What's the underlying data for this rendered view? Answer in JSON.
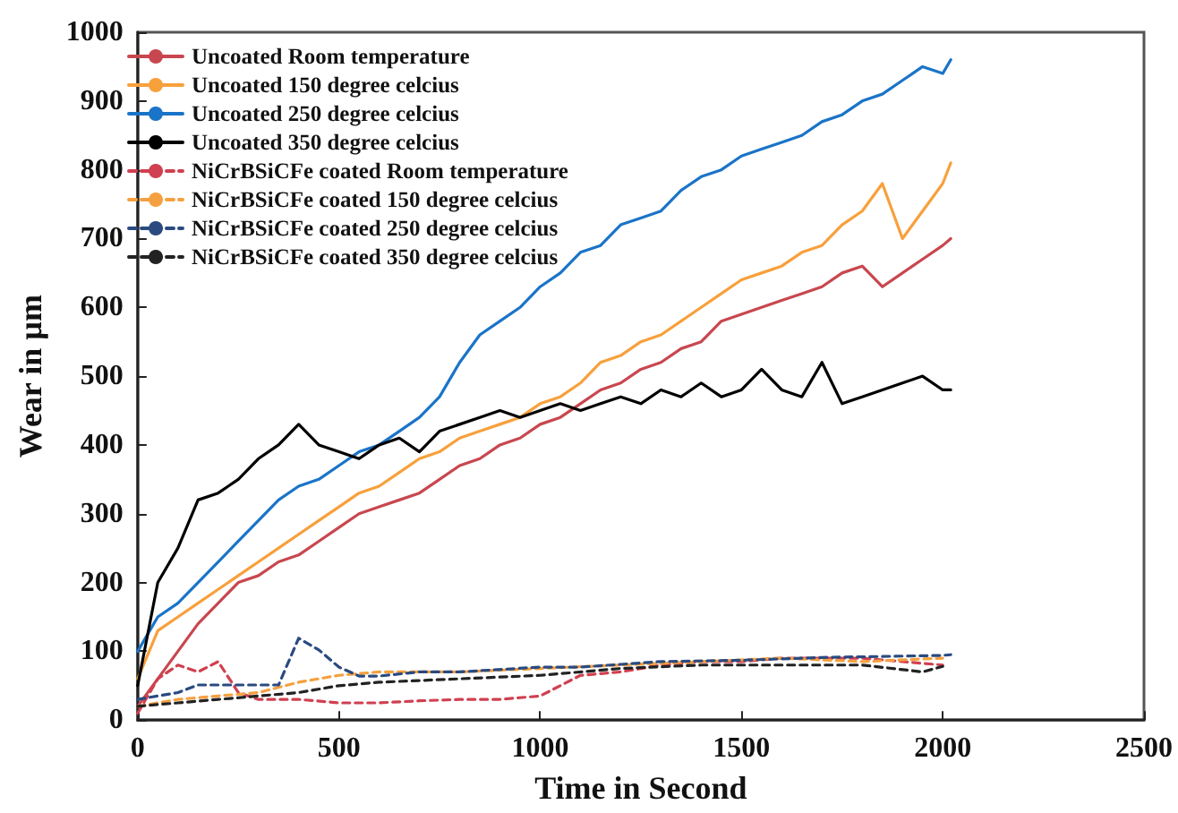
{
  "chart_data": {
    "type": "line",
    "xlabel": "Time in Second",
    "ylabel": "Wear in µm",
    "x": [
      0,
      50,
      100,
      150,
      200,
      250,
      300,
      350,
      400,
      450,
      500,
      550,
      600,
      650,
      700,
      750,
      800,
      850,
      900,
      950,
      1000,
      1050,
      1100,
      1150,
      1200,
      1250,
      1300,
      1350,
      1400,
      1450,
      1500,
      1550,
      1600,
      1650,
      1700,
      1750,
      1800,
      1850,
      1900,
      1950,
      2000,
      2020
    ],
    "series": [
      {
        "name": "Uncoated Room temperature",
        "color": "#c8474f",
        "values": [
          20,
          60,
          100,
          140,
          170,
          200,
          210,
          230,
          240,
          260,
          280,
          300,
          310,
          320,
          330,
          350,
          370,
          380,
          400,
          410,
          430,
          440,
          460,
          480,
          490,
          510,
          520,
          540,
          550,
          580,
          590,
          600,
          610,
          620,
          630,
          650,
          660,
          630,
          650,
          670,
          690,
          700
        ]
      },
      {
        "name": "Uncoated 150 degree celcius",
        "color": "#f7a03c",
        "values": [
          60,
          130,
          150,
          170,
          190,
          210,
          230,
          250,
          270,
          290,
          310,
          330,
          340,
          360,
          380,
          390,
          410,
          420,
          430,
          440,
          460,
          470,
          490,
          520,
          530,
          550,
          560,
          580,
          600,
          620,
          640,
          650,
          660,
          680,
          690,
          720,
          740,
          780,
          700,
          740,
          780,
          810
        ]
      },
      {
        "name": "Uncoated 250 degree celcius",
        "color": "#1a74c8",
        "values": [
          100,
          150,
          170,
          200,
          230,
          260,
          290,
          320,
          340,
          350,
          370,
          390,
          400,
          420,
          440,
          470,
          520,
          560,
          580,
          600,
          630,
          650,
          680,
          690,
          720,
          730,
          740,
          770,
          790,
          800,
          820,
          830,
          840,
          850,
          870,
          880,
          900,
          910,
          930,
          950,
          940,
          960
        ]
      },
      {
        "name": "Uncoated 350 degree celcius",
        "color": "#000000",
        "values": [
          50,
          200,
          250,
          320,
          330,
          350,
          380,
          400,
          430,
          400,
          390,
          380,
          400,
          410,
          390,
          420,
          430,
          440,
          450,
          440,
          450,
          460,
          450,
          460,
          470,
          460,
          480,
          470,
          490,
          470,
          480,
          510,
          480,
          470,
          520,
          460,
          470,
          480,
          490,
          500,
          480,
          480
        ]
      },
      {
        "name": "NiCrBSiCFe coated Room temperature",
        "color": "#d04050",
        "line_style": "dashed",
        "x": [
          0,
          50,
          100,
          150,
          200,
          250,
          300,
          400,
          500,
          600,
          700,
          800,
          900,
          1000,
          1050,
          1100,
          1200,
          1300,
          1400,
          1500,
          1600,
          1800,
          2000
        ],
        "values": [
          10,
          60,
          80,
          70,
          85,
          40,
          30,
          30,
          25,
          25,
          28,
          30,
          30,
          35,
          50,
          65,
          70,
          80,
          85,
          85,
          90,
          90,
          80
        ]
      },
      {
        "name": "NiCrBSiCFe coated 150 degree celcius",
        "color": "#f5a040",
        "line_style": "dashed",
        "x": [
          0,
          100,
          200,
          300,
          400,
          500,
          600,
          800,
          1000,
          1200,
          1400,
          1600,
          1800,
          2000
        ],
        "values": [
          20,
          30,
          35,
          40,
          55,
          65,
          70,
          70,
          75,
          80,
          85,
          90,
          85,
          90
        ]
      },
      {
        "name": "NiCrBSiCFe coated 250 degree celcius",
        "color": "#2a4a80",
        "line_style": "dashed",
        "x": [
          0,
          100,
          150,
          200,
          350,
          400,
          450,
          500,
          550,
          600,
          700,
          800,
          1000,
          1100,
          1200,
          1300,
          1500,
          1700,
          2000,
          2020
        ],
        "values": [
          30,
          40,
          51,
          51,
          51,
          119,
          102,
          77,
          64,
          64,
          70,
          70,
          77,
          77,
          81,
          85,
          87,
          91,
          94,
          95
        ]
      },
      {
        "name": "NiCrBSiCFe coated 350 degree celcius",
        "color": "#222222",
        "line_style": "dashed",
        "x": [
          0,
          100,
          200,
          300,
          400,
          500,
          600,
          800,
          1000,
          1200,
          1400,
          1600,
          1800,
          1950,
          2000
        ],
        "values": [
          20,
          25,
          30,
          35,
          40,
          50,
          55,
          60,
          65,
          75,
          80,
          80,
          80,
          70,
          78
        ]
      }
    ],
    "xlim": [
      0,
      2500
    ],
    "xticks": [
      0,
      500,
      1000,
      1500,
      2000,
      2500
    ],
    "ylim": [
      0,
      1000
    ],
    "yticks": [
      0,
      100,
      200,
      300,
      400,
      500,
      600,
      700,
      800,
      900,
      1000
    ],
    "grid": false,
    "legend": "top left",
    "marker": "none",
    "line_style": "solid"
  }
}
